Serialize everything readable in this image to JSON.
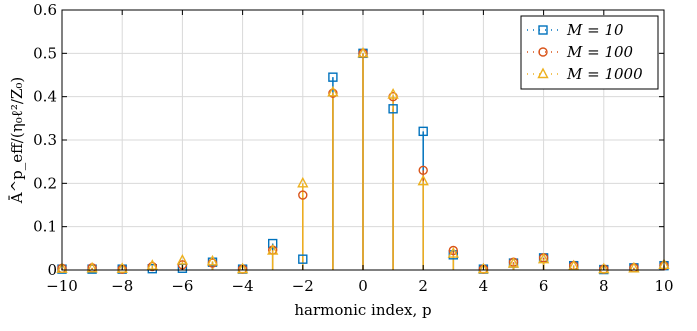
{
  "chart_data": {
    "type": "stem",
    "xlabel": "harmonic index, p",
    "ylabel": "Ā^p_eff/(η₀ℓ²/Z₀)",
    "xlim": [
      -10,
      10
    ],
    "ylim": [
      0,
      0.6
    ],
    "x_ticks": [
      -10,
      -8,
      -6,
      -4,
      -2,
      0,
      2,
      4,
      6,
      8,
      10
    ],
    "x_tick_labels": [
      "−10",
      "−8",
      "−6",
      "−4",
      "−2",
      "0",
      "2",
      "4",
      "6",
      "8",
      "10"
    ],
    "y_ticks": [
      0,
      0.1,
      0.2,
      0.3,
      0.4,
      0.5,
      0.6
    ],
    "y_tick_labels": [
      "0",
      "0.1",
      "0.2",
      "0.3",
      "0.4",
      "0.5",
      "0.6"
    ],
    "grid": true,
    "legend_position": "top-right",
    "x": [
      -10,
      -9,
      -8,
      -7,
      -6,
      -5,
      -4,
      -3,
      -2,
      -1,
      0,
      1,
      2,
      3,
      4,
      5,
      6,
      7,
      8,
      9,
      10
    ],
    "series": [
      {
        "name": "M = 10",
        "color": "#0072bd",
        "marker": "square",
        "values": [
          0.002,
          0.002,
          0.002,
          0.003,
          0.004,
          0.018,
          0.002,
          0.061,
          0.025,
          0.445,
          0.5,
          0.372,
          0.32,
          0.035,
          0.002,
          0.016,
          0.028,
          0.01,
          0.001,
          0.005,
          0.01
        ]
      },
      {
        "name": "M = 100",
        "color": "#d95319",
        "marker": "circle",
        "values": [
          0.004,
          0.005,
          0.002,
          0.008,
          0.012,
          0.016,
          0.002,
          0.046,
          0.173,
          0.408,
          0.5,
          0.4,
          0.23,
          0.045,
          0.002,
          0.018,
          0.028,
          0.01,
          0.002,
          0.005,
          0.01
        ]
      },
      {
        "name": "M = 1000",
        "color": "#edb120",
        "marker": "triangle",
        "values": [
          0.003,
          0.004,
          0.003,
          0.01,
          0.022,
          0.02,
          0.002,
          0.045,
          0.2,
          0.41,
          0.5,
          0.405,
          0.205,
          0.038,
          0.002,
          0.015,
          0.025,
          0.009,
          0.002,
          0.004,
          0.012
        ]
      }
    ],
    "legend": [
      {
        "label": "M = 10",
        "marker": "square",
        "color": "#0072bd"
      },
      {
        "label": "M = 100",
        "marker": "circle",
        "color": "#d95319"
      },
      {
        "label": "M = 1000",
        "marker": "triangle",
        "color": "#edb120"
      }
    ]
  }
}
